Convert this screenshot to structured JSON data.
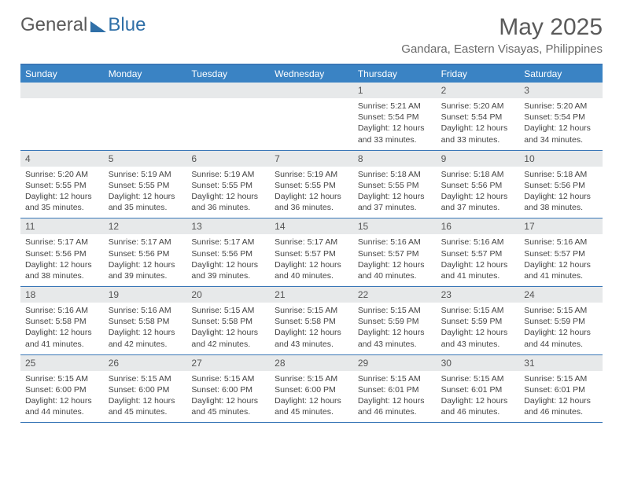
{
  "brand": {
    "general": "General",
    "blue": "Blue"
  },
  "title": "May 2025",
  "location": "Gandara, Eastern Visayas, Philippines",
  "colors": {
    "header_bg": "#3a83c4",
    "border": "#3a77b7",
    "daynum_bg": "#e7e9ea",
    "text_gray": "#5a5a5a",
    "logo_blue": "#2f6fa7"
  },
  "day_labels": [
    "Sunday",
    "Monday",
    "Tuesday",
    "Wednesday",
    "Thursday",
    "Friday",
    "Saturday"
  ],
  "weeks": [
    [
      null,
      null,
      null,
      null,
      {
        "n": "1",
        "sr": "5:21 AM",
        "ss": "5:54 PM",
        "dl": "12 hours and 33 minutes."
      },
      {
        "n": "2",
        "sr": "5:20 AM",
        "ss": "5:54 PM",
        "dl": "12 hours and 33 minutes."
      },
      {
        "n": "3",
        "sr": "5:20 AM",
        "ss": "5:54 PM",
        "dl": "12 hours and 34 minutes."
      }
    ],
    [
      {
        "n": "4",
        "sr": "5:20 AM",
        "ss": "5:55 PM",
        "dl": "12 hours and 35 minutes."
      },
      {
        "n": "5",
        "sr": "5:19 AM",
        "ss": "5:55 PM",
        "dl": "12 hours and 35 minutes."
      },
      {
        "n": "6",
        "sr": "5:19 AM",
        "ss": "5:55 PM",
        "dl": "12 hours and 36 minutes."
      },
      {
        "n": "7",
        "sr": "5:19 AM",
        "ss": "5:55 PM",
        "dl": "12 hours and 36 minutes."
      },
      {
        "n": "8",
        "sr": "5:18 AM",
        "ss": "5:55 PM",
        "dl": "12 hours and 37 minutes."
      },
      {
        "n": "9",
        "sr": "5:18 AM",
        "ss": "5:56 PM",
        "dl": "12 hours and 37 minutes."
      },
      {
        "n": "10",
        "sr": "5:18 AM",
        "ss": "5:56 PM",
        "dl": "12 hours and 38 minutes."
      }
    ],
    [
      {
        "n": "11",
        "sr": "5:17 AM",
        "ss": "5:56 PM",
        "dl": "12 hours and 38 minutes."
      },
      {
        "n": "12",
        "sr": "5:17 AM",
        "ss": "5:56 PM",
        "dl": "12 hours and 39 minutes."
      },
      {
        "n": "13",
        "sr": "5:17 AM",
        "ss": "5:56 PM",
        "dl": "12 hours and 39 minutes."
      },
      {
        "n": "14",
        "sr": "5:17 AM",
        "ss": "5:57 PM",
        "dl": "12 hours and 40 minutes."
      },
      {
        "n": "15",
        "sr": "5:16 AM",
        "ss": "5:57 PM",
        "dl": "12 hours and 40 minutes."
      },
      {
        "n": "16",
        "sr": "5:16 AM",
        "ss": "5:57 PM",
        "dl": "12 hours and 41 minutes."
      },
      {
        "n": "17",
        "sr": "5:16 AM",
        "ss": "5:57 PM",
        "dl": "12 hours and 41 minutes."
      }
    ],
    [
      {
        "n": "18",
        "sr": "5:16 AM",
        "ss": "5:58 PM",
        "dl": "12 hours and 41 minutes."
      },
      {
        "n": "19",
        "sr": "5:16 AM",
        "ss": "5:58 PM",
        "dl": "12 hours and 42 minutes."
      },
      {
        "n": "20",
        "sr": "5:15 AM",
        "ss": "5:58 PM",
        "dl": "12 hours and 42 minutes."
      },
      {
        "n": "21",
        "sr": "5:15 AM",
        "ss": "5:58 PM",
        "dl": "12 hours and 43 minutes."
      },
      {
        "n": "22",
        "sr": "5:15 AM",
        "ss": "5:59 PM",
        "dl": "12 hours and 43 minutes."
      },
      {
        "n": "23",
        "sr": "5:15 AM",
        "ss": "5:59 PM",
        "dl": "12 hours and 43 minutes."
      },
      {
        "n": "24",
        "sr": "5:15 AM",
        "ss": "5:59 PM",
        "dl": "12 hours and 44 minutes."
      }
    ],
    [
      {
        "n": "25",
        "sr": "5:15 AM",
        "ss": "6:00 PM",
        "dl": "12 hours and 44 minutes."
      },
      {
        "n": "26",
        "sr": "5:15 AM",
        "ss": "6:00 PM",
        "dl": "12 hours and 45 minutes."
      },
      {
        "n": "27",
        "sr": "5:15 AM",
        "ss": "6:00 PM",
        "dl": "12 hours and 45 minutes."
      },
      {
        "n": "28",
        "sr": "5:15 AM",
        "ss": "6:00 PM",
        "dl": "12 hours and 45 minutes."
      },
      {
        "n": "29",
        "sr": "5:15 AM",
        "ss": "6:01 PM",
        "dl": "12 hours and 46 minutes."
      },
      {
        "n": "30",
        "sr": "5:15 AM",
        "ss": "6:01 PM",
        "dl": "12 hours and 46 minutes."
      },
      {
        "n": "31",
        "sr": "5:15 AM",
        "ss": "6:01 PM",
        "dl": "12 hours and 46 minutes."
      }
    ]
  ],
  "labels": {
    "sunrise": "Sunrise: ",
    "sunset": "Sunset: ",
    "daylight": "Daylight: "
  }
}
